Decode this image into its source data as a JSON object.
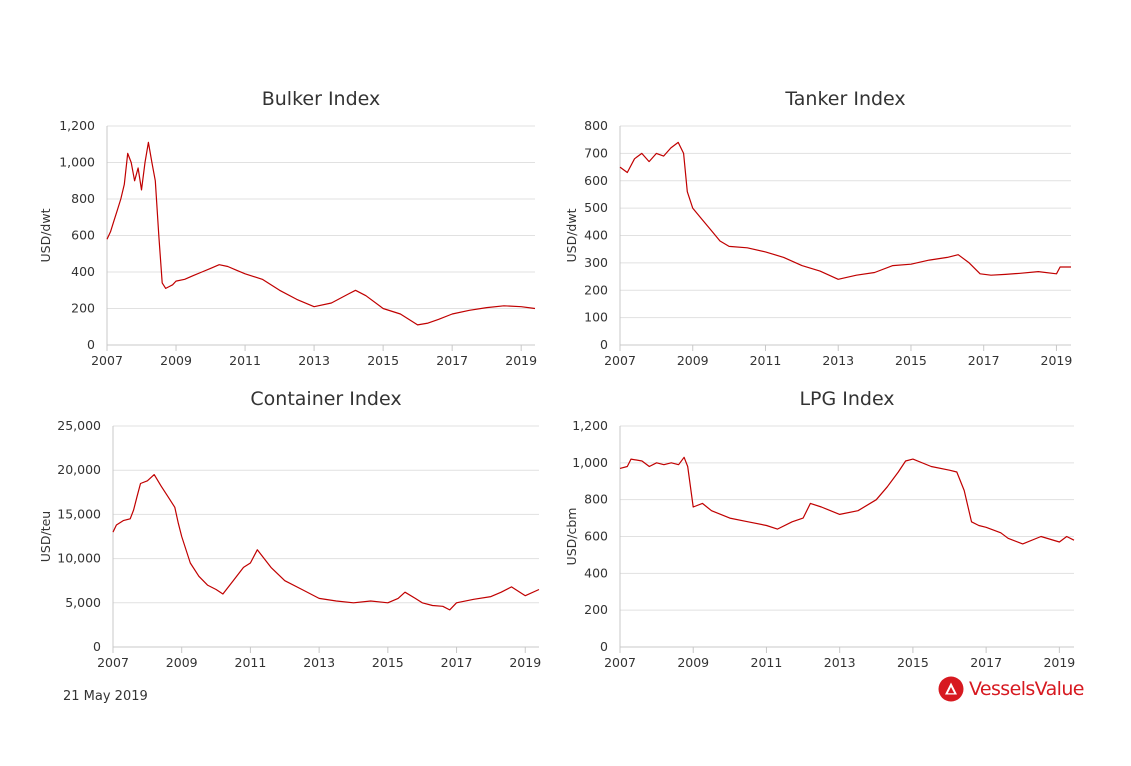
{
  "footer": {
    "date": "21 May 2019"
  },
  "brand": {
    "name": "VesselsValue",
    "color": "#d71920",
    "icon": "vesselsvalue-logo-icon"
  },
  "line_color": "#c00000",
  "chart_data": [
    {
      "type": "line",
      "title": "Bulker Index",
      "ylabel": "USD/dwt",
      "xlim": [
        2007.0,
        2019.4
      ],
      "ylim": [
        0,
        1200
      ],
      "yticks": [
        0,
        200,
        400,
        600,
        800,
        1000,
        1200
      ],
      "ytick_labels": [
        "0",
        "200",
        "400",
        "600",
        "800",
        "1,000",
        "1,200"
      ],
      "xticks": [
        2007,
        2009,
        2011,
        2013,
        2015,
        2017,
        2019
      ],
      "xtick_labels": [
        "2007",
        "2009",
        "2011",
        "2013",
        "2015",
        "2017",
        "2019"
      ],
      "grid": true,
      "series": [
        {
          "x": [
            2007.0,
            2007.1,
            2007.2,
            2007.3,
            2007.4,
            2007.5,
            2007.6,
            2007.7,
            2007.8,
            2007.9,
            2008.0,
            2008.1,
            2008.2,
            2008.3,
            2008.4,
            2008.5,
            2008.6,
            2008.7,
            2008.8,
            2008.9,
            2009.0,
            2009.25,
            2009.5,
            2009.75,
            2010.0,
            2010.25,
            2010.5,
            2010.75,
            2011.0,
            2011.5,
            2012.0,
            2012.5,
            2013.0,
            2013.5,
            2014.0,
            2014.2,
            2014.5,
            2015.0,
            2015.5,
            2016.0,
            2016.3,
            2016.6,
            2017.0,
            2017.5,
            2018.0,
            2018.5,
            2019.0,
            2019.4
          ],
          "y": [
            580,
            620,
            680,
            740,
            800,
            880,
            1050,
            1000,
            900,
            970,
            850,
            1000,
            1110,
            1000,
            900,
            600,
            340,
            310,
            320,
            330,
            350,
            360,
            380,
            400,
            420,
            440,
            430,
            410,
            390,
            360,
            300,
            250,
            210,
            230,
            280,
            300,
            270,
            200,
            170,
            110,
            120,
            140,
            170,
            190,
            205,
            215,
            210,
            200
          ]
        }
      ]
    },
    {
      "type": "line",
      "title": "Tanker Index",
      "ylabel": "USD/dwt",
      "xlim": [
        2007.0,
        2019.4
      ],
      "ylim": [
        0,
        800
      ],
      "yticks": [
        0,
        100,
        200,
        300,
        400,
        500,
        600,
        700,
        800
      ],
      "ytick_labels": [
        "0",
        "100",
        "200",
        "300",
        "400",
        "500",
        "600",
        "700",
        "800"
      ],
      "xticks": [
        2007,
        2009,
        2011,
        2013,
        2015,
        2017,
        2019
      ],
      "xtick_labels": [
        "2007",
        "2009",
        "2011",
        "2013",
        "2015",
        "2017",
        "2019"
      ],
      "grid": true,
      "series": [
        {
          "x": [
            2007.0,
            2007.2,
            2007.4,
            2007.6,
            2007.8,
            2008.0,
            2008.2,
            2008.4,
            2008.6,
            2008.75,
            2008.85,
            2009.0,
            2009.25,
            2009.5,
            2009.75,
            2010.0,
            2010.5,
            2011.0,
            2011.5,
            2012.0,
            2012.5,
            2013.0,
            2013.5,
            2014.0,
            2014.5,
            2015.0,
            2015.5,
            2016.0,
            2016.3,
            2016.6,
            2016.9,
            2017.2,
            2017.6,
            2018.0,
            2018.5,
            2019.0,
            2019.1,
            2019.4
          ],
          "y": [
            650,
            630,
            680,
            700,
            670,
            700,
            690,
            720,
            740,
            700,
            560,
            500,
            460,
            420,
            380,
            360,
            355,
            340,
            320,
            290,
            270,
            240,
            255,
            265,
            290,
            295,
            310,
            320,
            330,
            300,
            260,
            255,
            258,
            262,
            268,
            260,
            285,
            285
          ]
        }
      ]
    },
    {
      "type": "line",
      "title": "Container Index",
      "ylabel": "USD/teu",
      "xlim": [
        2007.0,
        2019.4
      ],
      "ylim": [
        0,
        25000
      ],
      "yticks": [
        0,
        5000,
        10000,
        15000,
        20000,
        25000
      ],
      "ytick_labels": [
        "0",
        "5,000",
        "10,000",
        "15,000",
        "20,000",
        "25,000"
      ],
      "xticks": [
        2007,
        2009,
        2011,
        2013,
        2015,
        2017,
        2019
      ],
      "xtick_labels": [
        "2007",
        "2009",
        "2011",
        "2013",
        "2015",
        "2017",
        "2019"
      ],
      "grid": true,
      "series": [
        {
          "x": [
            2007.0,
            2007.1,
            2007.3,
            2007.5,
            2007.6,
            2007.7,
            2007.8,
            2008.0,
            2008.2,
            2008.4,
            2008.6,
            2008.8,
            2008.9,
            2009.0,
            2009.25,
            2009.5,
            2009.75,
            2010.0,
            2010.2,
            2010.5,
            2010.8,
            2011.0,
            2011.2,
            2011.4,
            2011.6,
            2012.0,
            2012.5,
            2013.0,
            2013.5,
            2014.0,
            2014.5,
            2015.0,
            2015.3,
            2015.5,
            2015.8,
            2016.0,
            2016.3,
            2016.6,
            2016.8,
            2017.0,
            2017.5,
            2018.0,
            2018.3,
            2018.6,
            2019.0,
            2019.4
          ],
          "y": [
            13000,
            13800,
            14300,
            14500,
            15500,
            17000,
            18500,
            18800,
            19500,
            18200,
            17000,
            15800,
            14000,
            12500,
            9500,
            8000,
            7000,
            6500,
            6000,
            7500,
            9000,
            9500,
            11000,
            10000,
            9000,
            7500,
            6500,
            5500,
            5200,
            5000,
            5200,
            5000,
            5500,
            6200,
            5500,
            5000,
            4700,
            4600,
            4200,
            5000,
            5400,
            5700,
            6200,
            6800,
            5800,
            6500
          ]
        }
      ]
    },
    {
      "type": "line",
      "title": "LPG Index",
      "ylabel": "USD/cbm",
      "xlim": [
        2007.0,
        2019.4
      ],
      "ylim": [
        0,
        1200
      ],
      "yticks": [
        0,
        200,
        400,
        600,
        800,
        1000,
        1200
      ],
      "ytick_labels": [
        "0",
        "200",
        "400",
        "600",
        "800",
        "1,000",
        "1,200"
      ],
      "xticks": [
        2007,
        2009,
        2011,
        2013,
        2015,
        2017,
        2019
      ],
      "xtick_labels": [
        "2007",
        "2009",
        "2011",
        "2013",
        "2015",
        "2017",
        "2019"
      ],
      "grid": true,
      "series": [
        {
          "x": [
            2007.0,
            2007.2,
            2007.3,
            2007.6,
            2007.8,
            2008.0,
            2008.2,
            2008.4,
            2008.6,
            2008.75,
            2008.85,
            2009.0,
            2009.25,
            2009.5,
            2010.0,
            2010.5,
            2011.0,
            2011.3,
            2011.7,
            2012.0,
            2012.2,
            2012.5,
            2013.0,
            2013.5,
            2014.0,
            2014.3,
            2014.6,
            2014.8,
            2015.0,
            2015.5,
            2016.0,
            2016.2,
            2016.4,
            2016.6,
            2016.8,
            2017.0,
            2017.4,
            2017.6,
            2018.0,
            2018.5,
            2019.0,
            2019.2,
            2019.4
          ],
          "y": [
            970,
            980,
            1020,
            1010,
            980,
            1000,
            990,
            1000,
            990,
            1030,
            980,
            760,
            780,
            740,
            700,
            680,
            660,
            640,
            680,
            700,
            780,
            760,
            720,
            740,
            800,
            870,
            950,
            1010,
            1020,
            980,
            960,
            950,
            850,
            680,
            660,
            650,
            620,
            590,
            560,
            600,
            570,
            600,
            580
          ]
        }
      ]
    }
  ]
}
